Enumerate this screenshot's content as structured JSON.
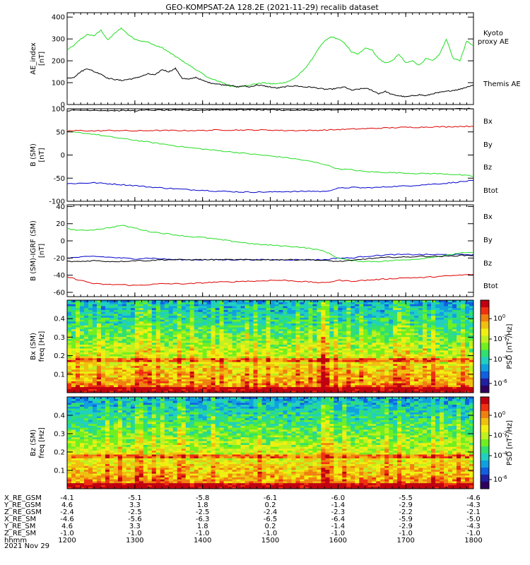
{
  "title": "GEO-KOMPSAT-2A 128.2E (2021-11-29) recalib dataset",
  "colors": {
    "black": "#000000",
    "green": "#22dd22",
    "red": "#dd0000",
    "blue": "#0000cc"
  },
  "chart_data": [
    {
      "type": "line",
      "panel": "ae",
      "ylabel": [
        "AE_index",
        "[nT]"
      ],
      "ylim": [
        0,
        420
      ],
      "yticks": [
        0,
        100,
        200,
        300,
        400
      ],
      "x": [
        1200,
        1210,
        1220,
        1230,
        1240,
        1250,
        1260,
        1270,
        1280,
        1290,
        1300,
        1310,
        1320,
        1330,
        1340,
        1350,
        1360,
        1370,
        1380,
        1390,
        1400,
        1410,
        1420,
        1430,
        1440,
        1450,
        1460,
        1470,
        1480,
        1490,
        1500,
        1510,
        1520,
        1530,
        1540,
        1550,
        1560,
        1570,
        1580,
        1590,
        1600,
        1610,
        1620,
        1630,
        1640,
        1650,
        1660,
        1670,
        1680,
        1690,
        1700,
        1710,
        1720,
        1730,
        1740,
        1750,
        1760,
        1770,
        1780,
        1790,
        1800
      ],
      "series": [
        {
          "name": "Kyoto proxy AE",
          "color": "#22dd22",
          "values": [
            250,
            270,
            300,
            320,
            315,
            340,
            295,
            325,
            350,
            320,
            300,
            290,
            285,
            270,
            260,
            240,
            220,
            200,
            180,
            160,
            140,
            120,
            110,
            100,
            85,
            80,
            85,
            90,
            95,
            100,
            95,
            95,
            100,
            110,
            130,
            160,
            200,
            250,
            290,
            310,
            300,
            280,
            240,
            230,
            260,
            250,
            210,
            190,
            200,
            230,
            190,
            200,
            180,
            210,
            200,
            230,
            300,
            210,
            200,
            290,
            270
          ]
        },
        {
          "name": "Themis AE",
          "color": "#000000",
          "values": [
            120,
            125,
            150,
            165,
            150,
            140,
            120,
            115,
            110,
            115,
            120,
            130,
            140,
            135,
            160,
            150,
            165,
            120,
            115,
            125,
            110,
            100,
            95,
            90,
            90,
            80,
            85,
            80,
            90,
            85,
            80,
            75,
            80,
            85,
            85,
            80,
            80,
            75,
            70,
            70,
            75,
            80,
            65,
            70,
            75,
            65,
            50,
            60,
            45,
            40,
            35,
            40,
            45,
            40,
            50,
            55,
            60,
            65,
            70,
            80,
            90
          ]
        }
      ]
    },
    {
      "type": "line",
      "panel": "bsm",
      "ylabel": [
        "B (SM)",
        "[nT]"
      ],
      "ylim": [
        -100,
        100
      ],
      "yticks": [
        -100,
        -50,
        0,
        50,
        100
      ],
      "x": [
        1200,
        1220,
        1240,
        1260,
        1280,
        1300,
        1320,
        1340,
        1360,
        1380,
        1400,
        1420,
        1440,
        1460,
        1480,
        1500,
        1520,
        1540,
        1560,
        1580,
        1600,
        1620,
        1640,
        1660,
        1680,
        1700,
        1720,
        1740,
        1760,
        1780,
        1800
      ],
      "series": [
        {
          "name": "Bx",
          "color": "#0000cc",
          "values": [
            -62,
            -61,
            -60,
            -62,
            -64,
            -66,
            -69,
            -71,
            -73,
            -75,
            -76,
            -78,
            -79,
            -80,
            -80,
            -80,
            -79,
            -79,
            -78,
            -79,
            -72,
            -70,
            -71,
            -70,
            -68,
            -67,
            -65,
            -63,
            -61,
            -58,
            -55
          ]
        },
        {
          "name": "By",
          "color": "#22dd22",
          "values": [
            50,
            48,
            45,
            40,
            36,
            32,
            28,
            24,
            20,
            16,
            13,
            10,
            7,
            4,
            1,
            -2,
            -5,
            -9,
            -14,
            -20,
            -30,
            -32,
            -36,
            -37,
            -38,
            -39,
            -40,
            -40,
            -41,
            -43,
            -46
          ]
        },
        {
          "name": "Bz",
          "color": "#dd0000",
          "values": [
            52,
            53,
            52,
            53,
            53,
            52,
            53,
            53,
            53,
            53,
            53,
            54,
            54,
            54,
            54,
            54,
            53,
            53,
            53,
            54,
            55,
            56,
            57,
            58,
            59,
            60,
            60,
            61,
            61,
            62,
            62
          ]
        },
        {
          "name": "Btot",
          "color": "#000000",
          "values": [
            96,
            97,
            97,
            96,
            96,
            96,
            97,
            97,
            97,
            97,
            97,
            98,
            98,
            98,
            98,
            98,
            97,
            97,
            97,
            98,
            97,
            99,
            99,
            99,
            99,
            99,
            100,
            100,
            100,
            100,
            100
          ]
        }
      ],
      "legend": [
        "Bx",
        "By",
        "Bz",
        "Btot"
      ]
    },
    {
      "type": "line",
      "panel": "bdiff",
      "ylabel": [
        "B (SM)-IGRF (SM)",
        "[nT]"
      ],
      "ylim": [
        -65,
        42
      ],
      "yticks": [
        -60,
        -40,
        -20,
        0,
        20,
        40
      ],
      "x": [
        1200,
        1220,
        1240,
        1260,
        1280,
        1300,
        1320,
        1340,
        1360,
        1380,
        1400,
        1420,
        1440,
        1460,
        1480,
        1500,
        1520,
        1540,
        1560,
        1580,
        1600,
        1620,
        1640,
        1660,
        1680,
        1700,
        1720,
        1740,
        1760,
        1780,
        1800
      ],
      "series": [
        {
          "name": "Bx",
          "color": "#0000cc",
          "values": [
            -20,
            -19,
            -18,
            -19,
            -20,
            -21,
            -20,
            -21,
            -22,
            -22,
            -22,
            -22,
            -22,
            -22,
            -22,
            -22,
            -22,
            -22,
            -22,
            -22,
            -20,
            -20,
            -18,
            -17,
            -16,
            -16,
            -16,
            -16,
            -16,
            -16,
            -16
          ]
        },
        {
          "name": "By",
          "color": "#22dd22",
          "values": [
            14,
            12,
            13,
            15,
            18,
            15,
            11,
            9,
            7,
            5,
            4,
            2,
            0,
            -2,
            -4,
            -5,
            -6,
            -7,
            -9,
            -12,
            -20,
            -23,
            -24,
            -24,
            -23,
            -22,
            -21,
            -19,
            -17,
            -14,
            -14
          ]
        },
        {
          "name": "Bz",
          "color": "#dd0000",
          "values": [
            -42,
            -46,
            -50,
            -51,
            -51,
            -52,
            -51,
            -50,
            -50,
            -50,
            -49,
            -48,
            -48,
            -47,
            -47,
            -46,
            -46,
            -47,
            -48,
            -49,
            -46,
            -47,
            -46,
            -45,
            -44,
            -43,
            -43,
            -42,
            -41,
            -40,
            -39
          ]
        },
        {
          "name": "Btot",
          "color": "#000000",
          "values": [
            -24,
            -24,
            -23,
            -24,
            -24,
            -23,
            -23,
            -22,
            -22,
            -22,
            -22,
            -22,
            -22,
            -22,
            -22,
            -22,
            -22,
            -22,
            -22,
            -23,
            -24,
            -23,
            -21,
            -20,
            -19,
            -19,
            -18,
            -18,
            -18,
            -17,
            -17
          ]
        }
      ],
      "legend": [
        "Bx",
        "By",
        "Bz",
        "Btot"
      ]
    },
    {
      "type": "heatmap",
      "panel": "spec_bx",
      "ylabel": [
        "Bx (SM)",
        "freq [Hz]"
      ],
      "ylim": [
        0,
        0.5
      ],
      "yticks": [
        0.1,
        0.2,
        0.3,
        0.4
      ],
      "colorbar": {
        "label": "PSD [nT^2/Hz]",
        "ticks": [
          "10^0",
          "10^-2",
          "10^-4",
          "10^-6"
        ]
      }
    },
    {
      "type": "heatmap",
      "panel": "spec_bz",
      "ylabel": [
        "Bz (SM)",
        "freq [Hz]"
      ],
      "ylim": [
        0,
        0.5
      ],
      "yticks": [
        0.1,
        0.2,
        0.3,
        0.4
      ],
      "colorbar": {
        "label": "PSD [nT^2/Hz]",
        "ticks": [
          "10^0",
          "10^-2",
          "10^-4",
          "10^-6"
        ]
      }
    }
  ],
  "xaxis": {
    "ticks": [
      1200,
      1300,
      1400,
      1500,
      1600,
      1700,
      1800
    ],
    "rows": [
      {
        "label": "X_RE_GSM",
        "values": [
          "-4.1",
          "-5.1",
          "-5.8",
          "-6.1",
          "-6.0",
          "-5.5",
          "-4.6"
        ]
      },
      {
        "label": "Y_RE_GSM",
        "values": [
          "4.6",
          "3.3",
          "1.8",
          "0.2",
          "-1.4",
          "-2.9",
          "-4.3"
        ]
      },
      {
        "label": "Z_RE_GSM",
        "values": [
          "-2.4",
          "-2.5",
          "-2.5",
          "-2.4",
          "-2.3",
          "-2.2",
          "-2.1"
        ]
      },
      {
        "label": "X_RE_SM",
        "values": [
          "-4.6",
          "-5.6",
          "-6.3",
          "-6.5",
          "-6.4",
          "-5.9",
          "-5.0"
        ]
      },
      {
        "label": "Y_RE_SM",
        "values": [
          "4.6",
          "3.3",
          "1.8",
          "0.2",
          "-1.4",
          "-2.9",
          "-4.3"
        ]
      },
      {
        "label": "Z_RE_SM",
        "values": [
          "-1.0",
          "-1.0",
          "-1.0",
          "-1.0",
          "-1.0",
          "-1.0",
          "-1.0"
        ]
      },
      {
        "label": "hhmm",
        "values": [
          "1200",
          "1300",
          "1400",
          "1500",
          "1600",
          "1700",
          "1800"
        ]
      }
    ],
    "date": "2021 Nov 29"
  }
}
